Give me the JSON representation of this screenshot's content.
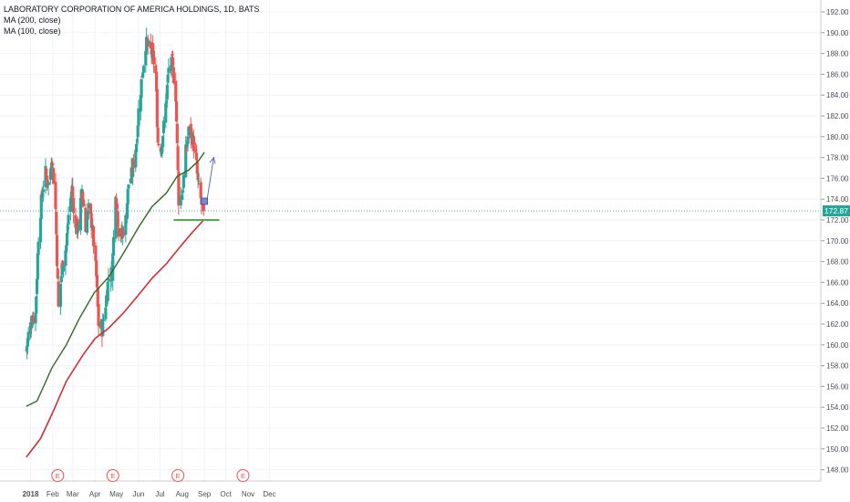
{
  "title": "LABORATORY CORPORATION OF AMERICA HOLDINGS, 1D, BATS",
  "indicators": [
    "MA (200, close)",
    "MA (100, close)"
  ],
  "last_price": "172.87",
  "colors": {
    "up": "#26a69a",
    "down": "#ef5350",
    "ma200": "#d32f2f",
    "ma100": "#2e6b1c",
    "support": "#4caf50",
    "arrow": "#5c6bc0",
    "grid": "#f0f3fa"
  },
  "chart_data": {
    "type": "candlestick",
    "title": "LABORATORY CORPORATION OF AMERICA HOLDINGS, 1D, BATS",
    "y_ticks": [
      "148.00",
      "150.00",
      "152.00",
      "154.00",
      "156.00",
      "158.00",
      "160.00",
      "162.00",
      "164.00",
      "166.00",
      "168.00",
      "170.00",
      "172.00",
      "174.00",
      "176.00",
      "178.00",
      "180.00",
      "182.00",
      "184.00",
      "186.00",
      "188.00",
      "190.00",
      "192.00"
    ],
    "x_ticks": [
      "2018",
      "Feb",
      "Mar",
      "Apr",
      "May",
      "Jun",
      "Jul",
      "Aug",
      "Sep",
      "Oct",
      "Nov",
      "Dec"
    ],
    "ylim": [
      147.0,
      193.0
    ],
    "grid": true,
    "earnings_markers": [
      {
        "label": "E",
        "date": "2018-02-08"
      },
      {
        "label": "E",
        "date": "2018-04-26"
      },
      {
        "label": "E",
        "date": "2018-07-26"
      },
      {
        "label": "E",
        "date": "2018-10-25"
      }
    ],
    "close_series_approx": [
      [
        "2017-12-26",
        159.5
      ],
      [
        "2017-12-29",
        161.0
      ],
      [
        "2018-01-03",
        162.5
      ],
      [
        "2018-01-08",
        163.0
      ],
      [
        "2018-01-12",
        170.5
      ],
      [
        "2018-01-17",
        174.5
      ],
      [
        "2018-01-22",
        176.5
      ],
      [
        "2018-01-26",
        175.5
      ],
      [
        "2018-01-31",
        178.0
      ],
      [
        "2018-02-05",
        173.0
      ],
      [
        "2018-02-09",
        163.5
      ],
      [
        "2018-02-14",
        167.5
      ],
      [
        "2018-02-20",
        169.5
      ],
      [
        "2018-02-23",
        172.5
      ],
      [
        "2018-02-28",
        175.0
      ],
      [
        "2018-03-05",
        171.0
      ],
      [
        "2018-03-09",
        171.5
      ],
      [
        "2018-03-14",
        175.0
      ],
      [
        "2018-03-19",
        171.0
      ],
      [
        "2018-03-23",
        173.0
      ],
      [
        "2018-03-28",
        171.5
      ],
      [
        "2018-04-03",
        166.5
      ],
      [
        "2018-04-06",
        162.0
      ],
      [
        "2018-04-11",
        161.5
      ],
      [
        "2018-04-16",
        164.0
      ],
      [
        "2018-04-20",
        166.5
      ],
      [
        "2018-04-25",
        167.0
      ],
      [
        "2018-04-30",
        175.0
      ],
      [
        "2018-05-04",
        171.0
      ],
      [
        "2018-05-09",
        170.5
      ],
      [
        "2018-05-14",
        172.0
      ],
      [
        "2018-05-18",
        175.5
      ],
      [
        "2018-05-23",
        176.5
      ],
      [
        "2018-05-29",
        179.5
      ],
      [
        "2018-06-01",
        182.5
      ],
      [
        "2018-06-06",
        186.0
      ],
      [
        "2018-06-11",
        189.0
      ],
      [
        "2018-06-15",
        188.5
      ],
      [
        "2018-06-20",
        188.0
      ],
      [
        "2018-06-25",
        186.0
      ],
      [
        "2018-06-28",
        179.5
      ],
      [
        "2018-07-03",
        179.0
      ],
      [
        "2018-07-09",
        183.0
      ],
      [
        "2018-07-13",
        186.5
      ],
      [
        "2018-07-18",
        187.0
      ],
      [
        "2018-07-23",
        184.0
      ],
      [
        "2018-07-27",
        174.0
      ],
      [
        "2018-08-01",
        174.5
      ],
      [
        "2018-08-06",
        178.5
      ],
      [
        "2018-08-10",
        180.5
      ],
      [
        "2018-08-15",
        180.0
      ],
      [
        "2018-08-20",
        178.0
      ],
      [
        "2018-08-23",
        175.5
      ],
      [
        "2018-08-28",
        173.5
      ],
      [
        "2018-08-31",
        172.87
      ]
    ],
    "series": [
      {
        "name": "MA (200, close)",
        "values": [
          [
            "2017-12-26",
            149.2
          ],
          [
            "2018-01-15",
            151.0
          ],
          [
            "2018-02-01",
            153.5
          ],
          [
            "2018-02-20",
            156.5
          ],
          [
            "2018-03-15",
            159.0
          ],
          [
            "2018-04-01",
            160.6
          ],
          [
            "2018-04-20",
            161.6
          ],
          [
            "2018-05-10",
            163.0
          ],
          [
            "2018-06-01",
            164.8
          ],
          [
            "2018-06-20",
            166.4
          ],
          [
            "2018-07-10",
            167.8
          ],
          [
            "2018-07-30",
            169.5
          ],
          [
            "2018-08-15",
            170.8
          ],
          [
            "2018-08-31",
            172.0
          ]
        ]
      },
      {
        "name": "MA (100, close)",
        "values": [
          [
            "2017-12-26",
            154.1
          ],
          [
            "2018-01-10",
            154.6
          ],
          [
            "2018-01-31",
            157.8
          ],
          [
            "2018-02-20",
            160.0
          ],
          [
            "2018-03-10",
            162.5
          ],
          [
            "2018-03-31",
            165.0
          ],
          [
            "2018-04-20",
            166.5
          ],
          [
            "2018-05-10",
            168.7
          ],
          [
            "2018-06-01",
            171.3
          ],
          [
            "2018-06-20",
            173.3
          ],
          [
            "2018-07-10",
            174.6
          ],
          [
            "2018-07-25",
            176.2
          ],
          [
            "2018-08-10",
            176.8
          ],
          [
            "2018-08-24",
            177.7
          ],
          [
            "2018-09-01",
            178.5
          ]
        ]
      }
    ],
    "annotations": [
      {
        "type": "horizontal_line",
        "value": 172.0,
        "from": "2018-07-20",
        "to": "2018-09-22"
      },
      {
        "type": "arrow",
        "from": [
          "2018-09-01",
          173.8
        ],
        "to": [
          "2018-09-14",
          178.0
        ]
      }
    ]
  }
}
